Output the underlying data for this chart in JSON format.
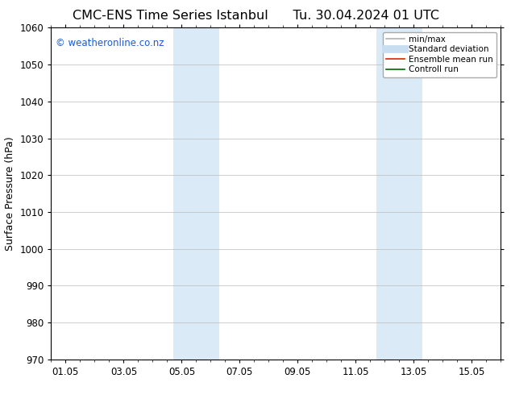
{
  "title_left": "CMC-ENS Time Series Istanbul",
  "title_right": "Tu. 30.04.2024 01 UTC",
  "ylabel": "Surface Pressure (hPa)",
  "ylim": [
    970,
    1060
  ],
  "yticks": [
    970,
    980,
    990,
    1000,
    1010,
    1020,
    1030,
    1040,
    1050,
    1060
  ],
  "xtick_labels": [
    "01.05",
    "03.05",
    "05.05",
    "07.05",
    "09.05",
    "11.05",
    "13.05",
    "15.05"
  ],
  "xtick_positions": [
    0,
    2,
    4,
    6,
    8,
    10,
    12,
    14
  ],
  "xlim": [
    -0.5,
    15.0
  ],
  "shaded_bands": [
    {
      "x_start": 3.7,
      "x_end": 5.3
    },
    {
      "x_start": 10.7,
      "x_end": 12.3
    }
  ],
  "shaded_color": "#daeaf7",
  "watermark": "© weatheronline.co.nz",
  "watermark_color": "#1a5cd6",
  "legend_items": [
    {
      "label": "min/max",
      "color": "#b0b0b0",
      "lw": 1.2,
      "linestyle": "-"
    },
    {
      "label": "Standard deviation",
      "color": "#c8ddf0",
      "lw": 7,
      "linestyle": "-"
    },
    {
      "label": "Ensemble mean run",
      "color": "#dd2200",
      "lw": 1.2,
      "linestyle": "-"
    },
    {
      "label": "Controll run",
      "color": "#006600",
      "lw": 1.2,
      "linestyle": "-"
    }
  ],
  "background_color": "#ffffff",
  "grid_color": "#bbbbbb",
  "title_fontsize": 11.5,
  "label_fontsize": 9,
  "tick_fontsize": 8.5,
  "watermark_fontsize": 8.5,
  "legend_fontsize": 7.5
}
